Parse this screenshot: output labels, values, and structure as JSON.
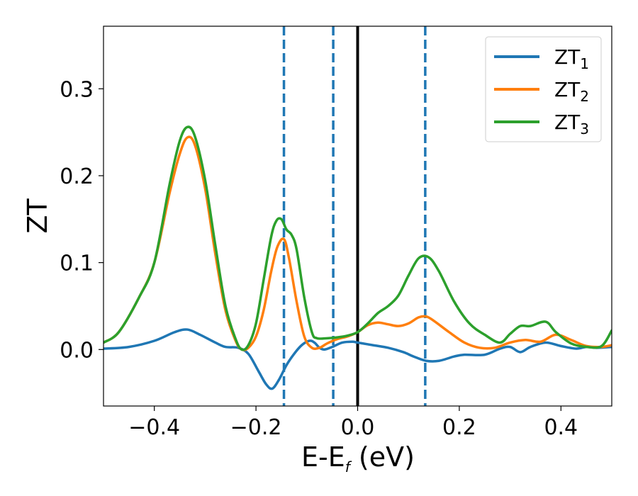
{
  "chart_data": {
    "type": "line",
    "xlabel_main": "E-E",
    "xlabel_sub": "f",
    "xlabel_unit": " (eV)",
    "ylabel": "ZT",
    "xlim": [
      -0.5,
      0.5
    ],
    "ylim": [
      -0.065,
      0.372
    ],
    "xticks": [
      -0.4,
      -0.2,
      0.0,
      0.2,
      0.4
    ],
    "xtick_labels": [
      "−0.4",
      "−0.2",
      "0.0",
      "0.2",
      "0.4"
    ],
    "yticks": [
      0.0,
      0.1,
      0.2,
      0.3
    ],
    "ytick_labels": [
      "0.0",
      "0.1",
      "0.2",
      "0.3"
    ],
    "grid": false,
    "legend_position": "top-right",
    "vlines": [
      {
        "x": 0.0,
        "style": "solid",
        "color": "#000000"
      },
      {
        "x": -0.145,
        "style": "dashed",
        "color": "#1f77b4"
      },
      {
        "x": -0.048,
        "style": "dashed",
        "color": "#1f77b4"
      },
      {
        "x": 0.133,
        "style": "dashed",
        "color": "#1f77b4"
      }
    ],
    "series": [
      {
        "name_main": "ZT",
        "name_sub": "1",
        "color": "#1f77b4",
        "x": [
          -0.5,
          -0.45,
          -0.4,
          -0.36,
          -0.335,
          -0.31,
          -0.28,
          -0.26,
          -0.235,
          -0.215,
          -0.195,
          -0.18,
          -0.168,
          -0.155,
          -0.14,
          -0.125,
          -0.11,
          -0.095,
          -0.085,
          -0.075,
          -0.065,
          -0.05,
          -0.03,
          -0.01,
          0.0,
          0.03,
          0.06,
          0.09,
          0.11,
          0.135,
          0.16,
          0.19,
          0.21,
          0.25,
          0.28,
          0.3,
          0.32,
          0.34,
          0.37,
          0.4,
          0.43,
          0.45,
          0.47,
          0.5
        ],
        "y": [
          0.001,
          0.003,
          0.01,
          0.02,
          0.023,
          0.017,
          0.008,
          0.003,
          0.002,
          -0.005,
          -0.025,
          -0.04,
          -0.045,
          -0.035,
          -0.018,
          -0.005,
          0.005,
          0.01,
          0.008,
          0.002,
          0.0,
          0.003,
          0.008,
          0.009,
          0.008,
          0.005,
          0.002,
          -0.003,
          -0.008,
          -0.013,
          -0.013,
          -0.008,
          -0.006,
          -0.006,
          0.001,
          0.003,
          -0.003,
          0.003,
          0.008,
          0.004,
          0.001,
          0.003,
          0.002,
          0.003
        ]
      },
      {
        "name_main": "ZT",
        "name_sub": "2",
        "color": "#ff7f0e",
        "x": [
          -0.5,
          -0.47,
          -0.43,
          -0.4,
          -0.37,
          -0.35,
          -0.335,
          -0.32,
          -0.3,
          -0.28,
          -0.26,
          -0.24,
          -0.228,
          -0.215,
          -0.2,
          -0.185,
          -0.17,
          -0.158,
          -0.145,
          -0.135,
          -0.12,
          -0.105,
          -0.09,
          -0.075,
          -0.06,
          -0.04,
          -0.02,
          0.0,
          0.02,
          0.04,
          0.06,
          0.08,
          0.1,
          0.12,
          0.135,
          0.15,
          0.18,
          0.21,
          0.24,
          0.27,
          0.3,
          0.33,
          0.36,
          0.39,
          0.42,
          0.45,
          0.48,
          0.5
        ],
        "y": [
          0.008,
          0.02,
          0.06,
          0.1,
          0.18,
          0.225,
          0.244,
          0.235,
          0.185,
          0.11,
          0.045,
          0.01,
          0.0,
          0.002,
          0.015,
          0.045,
          0.09,
          0.118,
          0.127,
          0.105,
          0.055,
          0.015,
          0.002,
          0.002,
          0.007,
          0.012,
          0.015,
          0.02,
          0.028,
          0.031,
          0.029,
          0.027,
          0.03,
          0.037,
          0.038,
          0.033,
          0.02,
          0.008,
          0.002,
          0.002,
          0.008,
          0.011,
          0.009,
          0.017,
          0.011,
          0.004,
          0.003,
          0.005
        ]
      },
      {
        "name_main": "ZT",
        "name_sub": "3",
        "color": "#2ca02c",
        "x": [
          -0.5,
          -0.47,
          -0.43,
          -0.4,
          -0.37,
          -0.35,
          -0.335,
          -0.32,
          -0.3,
          -0.28,
          -0.26,
          -0.24,
          -0.228,
          -0.215,
          -0.2,
          -0.185,
          -0.17,
          -0.16,
          -0.15,
          -0.14,
          -0.13,
          -0.12,
          -0.105,
          -0.09,
          -0.08,
          -0.06,
          -0.04,
          -0.02,
          0.0,
          0.02,
          0.04,
          0.06,
          0.08,
          0.1,
          0.12,
          0.14,
          0.16,
          0.19,
          0.22,
          0.25,
          0.28,
          0.3,
          0.32,
          0.34,
          0.37,
          0.39,
          0.42,
          0.45,
          0.48,
          0.5
        ],
        "y": [
          0.008,
          0.02,
          0.06,
          0.1,
          0.19,
          0.24,
          0.256,
          0.245,
          0.195,
          0.12,
          0.05,
          0.012,
          0.0,
          0.005,
          0.03,
          0.08,
          0.13,
          0.148,
          0.15,
          0.138,
          0.132,
          0.115,
          0.06,
          0.02,
          0.013,
          0.013,
          0.014,
          0.016,
          0.02,
          0.03,
          0.042,
          0.05,
          0.062,
          0.085,
          0.105,
          0.106,
          0.09,
          0.055,
          0.03,
          0.017,
          0.008,
          0.018,
          0.027,
          0.027,
          0.032,
          0.02,
          0.007,
          0.003,
          0.004,
          0.022
        ]
      }
    ]
  }
}
